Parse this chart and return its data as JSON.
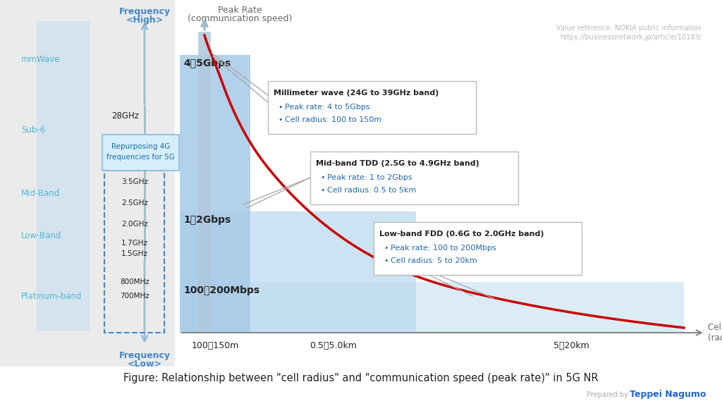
{
  "white": "#ffffff",
  "light_gray_bg": "#ebebeb",
  "light_blue_band": "#cce0f0",
  "arrow_blue": "#9bbdd4",
  "cyan_text": "#4db8d4",
  "dark_text": "#222222",
  "red_curve": "#cc0000",
  "dashed_blue": "#4488cc",
  "blue_bar1": "#b8d0e8",
  "blue_bar2": "#c8ddf0",
  "blue_bar3": "#d8eaf8",
  "gray_axis": "#999999",
  "box_border": "#cccccc",
  "info_blue": "#2266aa",
  "ref_gray": "#bbbbbb",
  "title_bottom": "Figure: Relationship between \"cell radius\" and \"communication speed (peak rate)\" in 5G NR",
  "ref_line1": "Value reference: NOKIA public information",
  "ref_line2": "https://businessnetwork.jp/article/10183/",
  "box1_title": "Millimeter wave (24G to 39GHz band)",
  "box1_item1": "Peak rate: 4 to 5Gbps",
  "box1_item2": "Cell radius: 100 to 150m",
  "box2_title": "Mid-band TDD (2.5G to 4.9GHz band)",
  "box2_item1": "Peak rate: 1 to 2Gbps",
  "box2_item2": "Cell radius: 0.5 to 5km",
  "box3_title": "Low-band FDD (0.6G to 2.0GHz band)",
  "box3_item1": "Peak rate: 100 to 200Mbps",
  "box3_item2": "Cell radius: 5 to 20km"
}
